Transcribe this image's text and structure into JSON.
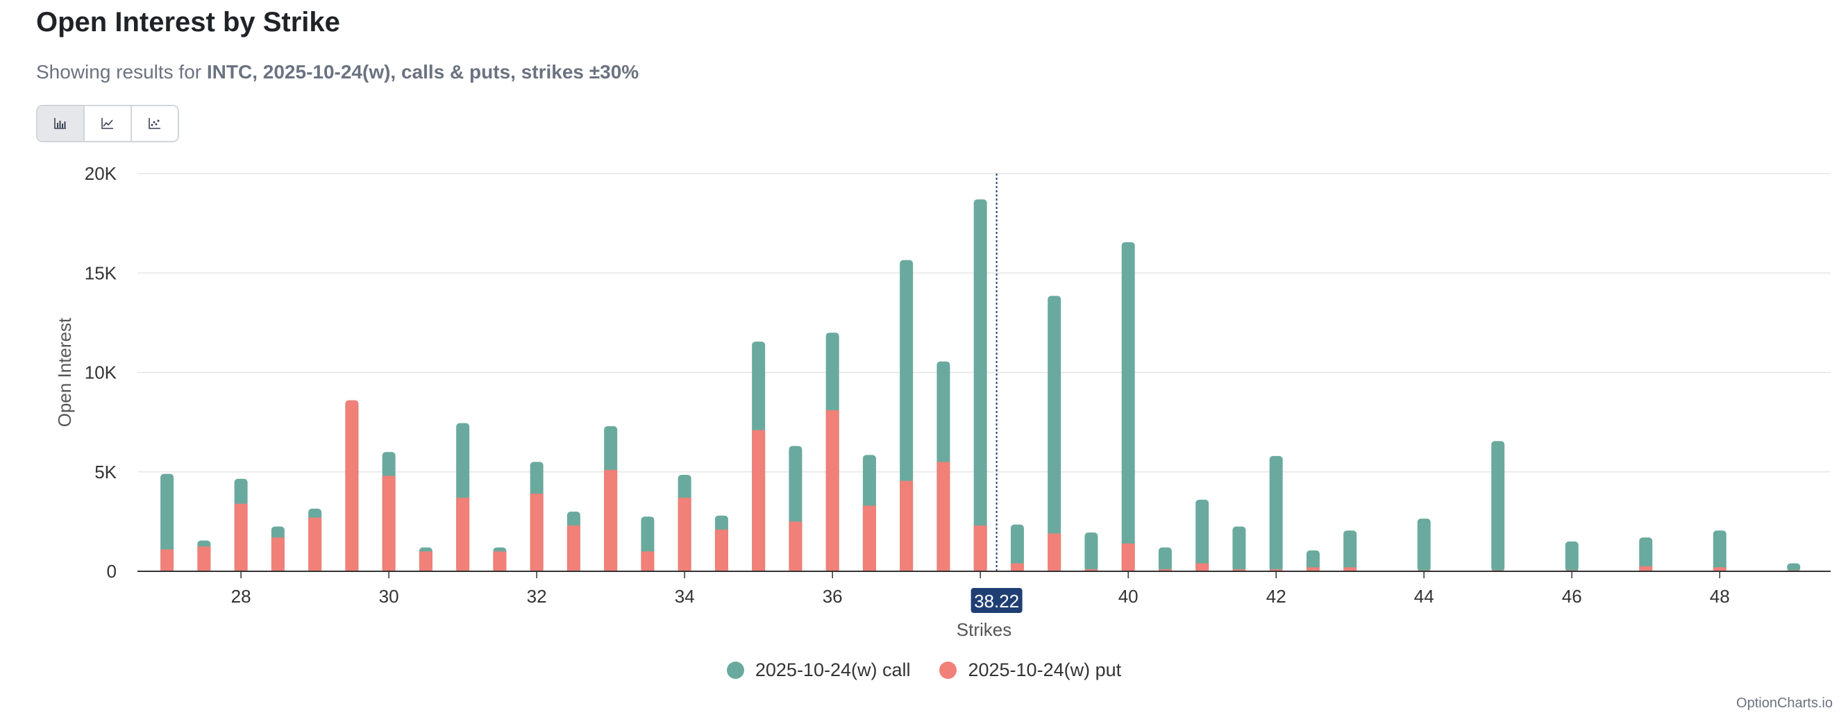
{
  "page": {
    "title": "Open Interest by Strike",
    "subtitle_prefix": "Showing results for ",
    "subtitle_bold": "INTC, 2025-10-24(w), calls & puts, strikes ±30%",
    "credits": "OptionCharts.io"
  },
  "toolbar": {
    "buttons": [
      {
        "name": "bar-chart-toggle",
        "icon": "bar-chart-icon",
        "active": true
      },
      {
        "name": "line-chart-toggle",
        "icon": "line-chart-icon",
        "active": false
      },
      {
        "name": "area-chart-toggle",
        "icon": "area-chart-icon",
        "active": false
      }
    ]
  },
  "colors": {
    "call": "#6aaa9e",
    "put": "#f08078",
    "marker": "#1f3f74"
  },
  "chart_data": {
    "type": "bar",
    "stacked": true,
    "xlabel": "Strikes",
    "ylabel": "Open Interest",
    "ylim": [
      0,
      20000
    ],
    "xlim": [
      26.6,
      49.5
    ],
    "y_ticks": [
      0,
      5000,
      10000,
      15000,
      20000
    ],
    "y_tick_labels": [
      "0",
      "5K",
      "10K",
      "15K",
      "20K"
    ],
    "x_ticks": [
      28,
      30,
      32,
      34,
      36,
      38,
      40,
      42,
      44,
      46,
      48
    ],
    "x_tick_labels": [
      "28",
      "30",
      "32",
      "34",
      "36",
      "38",
      "40",
      "42",
      "44",
      "46",
      "48"
    ],
    "current_price": 38.22,
    "current_price_label": "38.22",
    "legend_position": "bottom-center",
    "grid": true,
    "strikes": [
      27,
      27.5,
      28,
      28.5,
      29,
      29.5,
      30,
      30.5,
      31,
      31.5,
      32,
      32.5,
      33,
      33.5,
      34,
      34.5,
      35,
      35.5,
      36,
      36.5,
      37,
      37.5,
      38,
      38.5,
      39,
      39.5,
      40,
      40.5,
      41,
      41.5,
      42,
      42.5,
      43,
      44,
      45,
      46,
      47,
      48,
      49
    ],
    "series": [
      {
        "name": "2025-10-24(w) put",
        "values": [
          1100,
          1250,
          3400,
          1700,
          2700,
          8300,
          4800,
          1000,
          3700,
          1000,
          3900,
          2300,
          5100,
          1000,
          3700,
          2100,
          7100,
          2500,
          8100,
          3300,
          4550,
          5500,
          2300,
          400,
          1900,
          100,
          1400,
          100,
          400,
          100,
          100,
          200,
          200,
          50,
          50,
          50,
          250,
          200,
          50
        ]
      },
      {
        "name": "2025-10-24(w) call",
        "values": [
          3800,
          300,
          1250,
          550,
          450,
          300,
          1200,
          200,
          3750,
          200,
          1600,
          700,
          2200,
          1750,
          1150,
          700,
          4450,
          3800,
          3900,
          2550,
          11100,
          5050,
          16400,
          1950,
          11950,
          1850,
          15150,
          1100,
          3200,
          2150,
          5700,
          850,
          1850,
          2600,
          6500,
          1450,
          1450,
          1850,
          350
        ]
      }
    ]
  }
}
